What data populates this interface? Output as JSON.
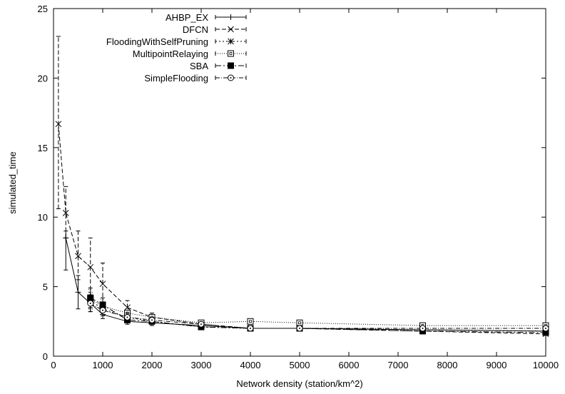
{
  "chart_data": {
    "type": "line",
    "title": "",
    "xlabel": "Network density (station/km^2)",
    "ylabel": "simulated_time",
    "xlim": [
      0,
      10000
    ],
    "ylim": [
      0,
      25
    ],
    "xticks": [
      0,
      1000,
      2000,
      3000,
      4000,
      5000,
      6000,
      7000,
      8000,
      9000,
      10000
    ],
    "yticks": [
      0,
      5,
      10,
      15,
      20,
      25
    ],
    "grid": false,
    "legend_position": "top-right",
    "error_bars": true,
    "series": [
      {
        "name": "AHBP_EX",
        "marker": "plus",
        "dash": "",
        "points": [
          {
            "x": 250,
            "y": 8.5,
            "lo": 6.2,
            "hi": 9.0
          },
          {
            "x": 500,
            "y": 4.6,
            "lo": 3.4,
            "hi": 5.8
          },
          {
            "x": 750,
            "y": 3.8,
            "lo": 3.2,
            "hi": 4.4
          },
          {
            "x": 1000,
            "y": 3.0,
            "lo": 2.7,
            "hi": 3.4
          },
          {
            "x": 1500,
            "y": 2.5,
            "lo": 2.3,
            "hi": 2.8
          },
          {
            "x": 2000,
            "y": 2.4,
            "lo": 2.2,
            "hi": 2.6
          },
          {
            "x": 3000,
            "y": 2.2,
            "lo": 2.05,
            "hi": 2.35
          },
          {
            "x": 4000,
            "y": 2.0,
            "lo": 1.9,
            "hi": 2.1
          },
          {
            "x": 5000,
            "y": 2.0,
            "lo": 1.9,
            "hi": 2.1
          },
          {
            "x": 7500,
            "y": 1.9,
            "lo": 1.8,
            "hi": 2.0
          },
          {
            "x": 10000,
            "y": 1.8,
            "lo": 1.7,
            "hi": 1.9
          }
        ]
      },
      {
        "name": "DFCN",
        "marker": "cross",
        "dash": "6,3",
        "points": [
          {
            "x": 100,
            "y": 16.7,
            "lo": 10.6,
            "hi": 23.0
          },
          {
            "x": 250,
            "y": 10.3,
            "lo": 8.5,
            "hi": 12.2
          },
          {
            "x": 500,
            "y": 7.2,
            "lo": 5.5,
            "hi": 9.0
          },
          {
            "x": 750,
            "y": 6.4,
            "lo": 4.3,
            "hi": 8.5
          },
          {
            "x": 1000,
            "y": 5.2,
            "lo": 3.8,
            "hi": 6.7
          },
          {
            "x": 1500,
            "y": 3.5,
            "lo": 3.0,
            "hi": 4.0
          },
          {
            "x": 2000,
            "y": 2.8,
            "lo": 2.5,
            "hi": 3.1
          },
          {
            "x": 3000,
            "y": 2.3,
            "lo": 2.1,
            "hi": 2.5
          },
          {
            "x": 4000,
            "y": 2.0,
            "lo": 1.9,
            "hi": 2.1
          },
          {
            "x": 5000,
            "y": 2.0,
            "lo": 1.9,
            "hi": 2.1
          },
          {
            "x": 7500,
            "y": 1.8,
            "lo": 1.7,
            "hi": 1.9
          },
          {
            "x": 10000,
            "y": 1.6,
            "lo": 1.5,
            "hi": 1.7
          }
        ]
      },
      {
        "name": "FloodingWithSelfPruning",
        "marker": "star",
        "dash": "2,3",
        "points": [
          {
            "x": 750,
            "y": 4.0,
            "lo": 3.4,
            "hi": 4.6
          },
          {
            "x": 1000,
            "y": 3.4,
            "lo": 3.0,
            "hi": 3.9
          },
          {
            "x": 1500,
            "y": 2.8,
            "lo": 2.5,
            "hi": 3.1
          },
          {
            "x": 2000,
            "y": 2.5,
            "lo": 2.3,
            "hi": 2.7
          },
          {
            "x": 3000,
            "y": 2.1,
            "lo": 2.0,
            "hi": 2.25
          },
          {
            "x": 4000,
            "y": 2.0,
            "lo": 1.9,
            "hi": 2.1
          },
          {
            "x": 5000,
            "y": 2.0,
            "lo": 1.9,
            "hi": 2.1
          },
          {
            "x": 7500,
            "y": 1.9,
            "lo": 1.8,
            "hi": 2.0
          },
          {
            "x": 10000,
            "y": 1.8,
            "lo": 1.7,
            "hi": 1.9
          }
        ]
      },
      {
        "name": "MultipointRelaying",
        "marker": "square-open",
        "dash": "1,2",
        "points": [
          {
            "x": 750,
            "y": 4.1,
            "lo": 3.5,
            "hi": 4.8
          },
          {
            "x": 1000,
            "y": 3.6,
            "lo": 3.2,
            "hi": 4.1
          },
          {
            "x": 1500,
            "y": 3.1,
            "lo": 2.8,
            "hi": 3.4
          },
          {
            "x": 2000,
            "y": 2.8,
            "lo": 2.6,
            "hi": 3.0
          },
          {
            "x": 3000,
            "y": 2.4,
            "lo": 2.3,
            "hi": 2.5
          },
          {
            "x": 4000,
            "y": 2.5,
            "lo": 2.4,
            "hi": 2.6
          },
          {
            "x": 5000,
            "y": 2.4,
            "lo": 2.3,
            "hi": 2.5
          },
          {
            "x": 7500,
            "y": 2.2,
            "lo": 2.1,
            "hi": 2.3
          },
          {
            "x": 10000,
            "y": 2.2,
            "lo": 2.1,
            "hi": 2.3
          }
        ]
      },
      {
        "name": "SBA",
        "marker": "square-filled",
        "dash": "8,3,2,3",
        "points": [
          {
            "x": 750,
            "y": 4.2,
            "lo": 3.5,
            "hi": 4.9
          },
          {
            "x": 1000,
            "y": 3.7,
            "lo": 3.2,
            "hi": 4.2
          },
          {
            "x": 1500,
            "y": 2.6,
            "lo": 2.4,
            "hi": 2.9
          },
          {
            "x": 2000,
            "y": 2.5,
            "lo": 2.3,
            "hi": 2.7
          },
          {
            "x": 3000,
            "y": 2.1,
            "lo": 2.0,
            "hi": 2.2
          },
          {
            "x": 4000,
            "y": 2.0,
            "lo": 1.9,
            "hi": 2.1
          },
          {
            "x": 5000,
            "y": 2.0,
            "lo": 1.9,
            "hi": 2.1
          },
          {
            "x": 7500,
            "y": 1.8,
            "lo": 1.7,
            "hi": 1.9
          },
          {
            "x": 10000,
            "y": 1.7,
            "lo": 1.6,
            "hi": 1.8
          }
        ]
      },
      {
        "name": "SimpleFlooding",
        "marker": "circle-open",
        "dash": "6,2,1,2",
        "points": [
          {
            "x": 750,
            "y": 3.8,
            "lo": 3.2,
            "hi": 4.4
          },
          {
            "x": 1000,
            "y": 3.3,
            "lo": 2.9,
            "hi": 3.7
          },
          {
            "x": 1500,
            "y": 2.8,
            "lo": 2.5,
            "hi": 3.1
          },
          {
            "x": 2000,
            "y": 2.6,
            "lo": 2.4,
            "hi": 2.8
          },
          {
            "x": 3000,
            "y": 2.3,
            "lo": 2.2,
            "hi": 2.4
          },
          {
            "x": 4000,
            "y": 2.0,
            "lo": 1.9,
            "hi": 2.1
          },
          {
            "x": 5000,
            "y": 2.0,
            "lo": 1.9,
            "hi": 2.1
          },
          {
            "x": 7500,
            "y": 2.0,
            "lo": 1.9,
            "hi": 2.1
          },
          {
            "x": 10000,
            "y": 2.0,
            "lo": 1.9,
            "hi": 2.1
          }
        ]
      }
    ]
  }
}
